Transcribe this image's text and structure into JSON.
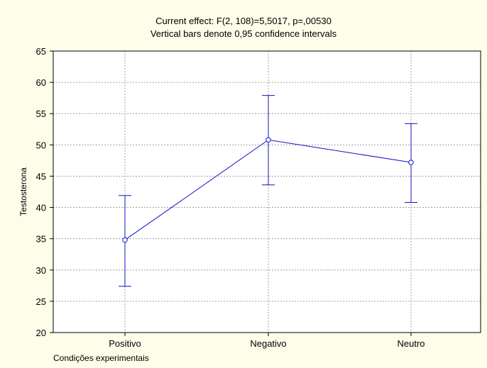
{
  "chart_data": {
    "type": "line",
    "title": "Current effect: F(2, 108)=5,5017, p=,00530",
    "subtitle": "Vertical bars denote 0,95 confidence intervals",
    "xlabel": "Condições experimentais",
    "ylabel": "Testosterona",
    "categories": [
      "Positivo",
      "Negativo",
      "Neutro"
    ],
    "ylim": [
      20,
      65
    ],
    "yticks": [
      20,
      25,
      30,
      35,
      40,
      45,
      50,
      55,
      60,
      65
    ],
    "grid": true,
    "series": [
      {
        "means": [
          34.8,
          50.8,
          47.2
        ],
        "ci_lower": [
          27.4,
          43.6,
          40.8
        ],
        "ci_upper": [
          41.9,
          57.9,
          53.4
        ]
      }
    ],
    "colors": {
      "series": "#1010c8",
      "grid": "#a0a0a0",
      "plot_background": "#ffffff",
      "page_background": "#fdfde9"
    }
  }
}
